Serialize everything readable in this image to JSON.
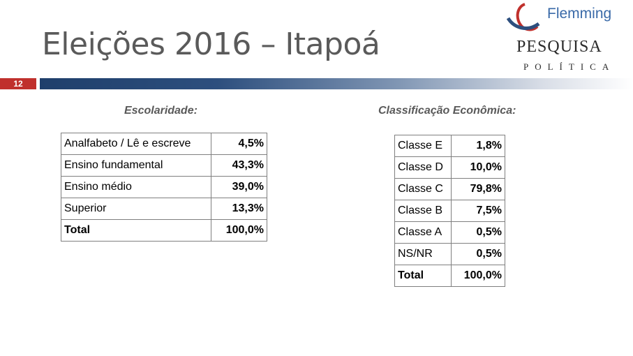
{
  "title": "Eleições 2016 – Itapoá",
  "slide_number": "12",
  "logo": {
    "brand": "Flemming",
    "line1": "PESQUISA",
    "line2": "POLÍTICA"
  },
  "colors": {
    "accent_red": "#c0302c",
    "bar_navy": "#1f3f6b",
    "brand_blue": "#3a6aa8"
  },
  "escolaridade": {
    "heading": "Escolaridade:",
    "rows": [
      {
        "label": "Analfabeto / Lê e escreve",
        "value": "4,5%"
      },
      {
        "label": "Ensino fundamental",
        "value": "43,3%"
      },
      {
        "label": "Ensino médio",
        "value": "39,0%"
      },
      {
        "label": "Superior",
        "value": "13,3%"
      },
      {
        "label": "Total",
        "value": "100,0%"
      }
    ]
  },
  "classificacao": {
    "heading": "Classificação Econômica:",
    "rows": [
      {
        "label": "Classe E",
        "value": "1,8%"
      },
      {
        "label": "Classe D",
        "value": "10,0%"
      },
      {
        "label": "Classe C",
        "value": "79,8%"
      },
      {
        "label": "Classe B",
        "value": "7,5%"
      },
      {
        "label": "Classe A",
        "value": "0,5%"
      },
      {
        "label": "NS/NR",
        "value": "0,5%"
      },
      {
        "label": "Total",
        "value": "100,0%"
      }
    ]
  }
}
